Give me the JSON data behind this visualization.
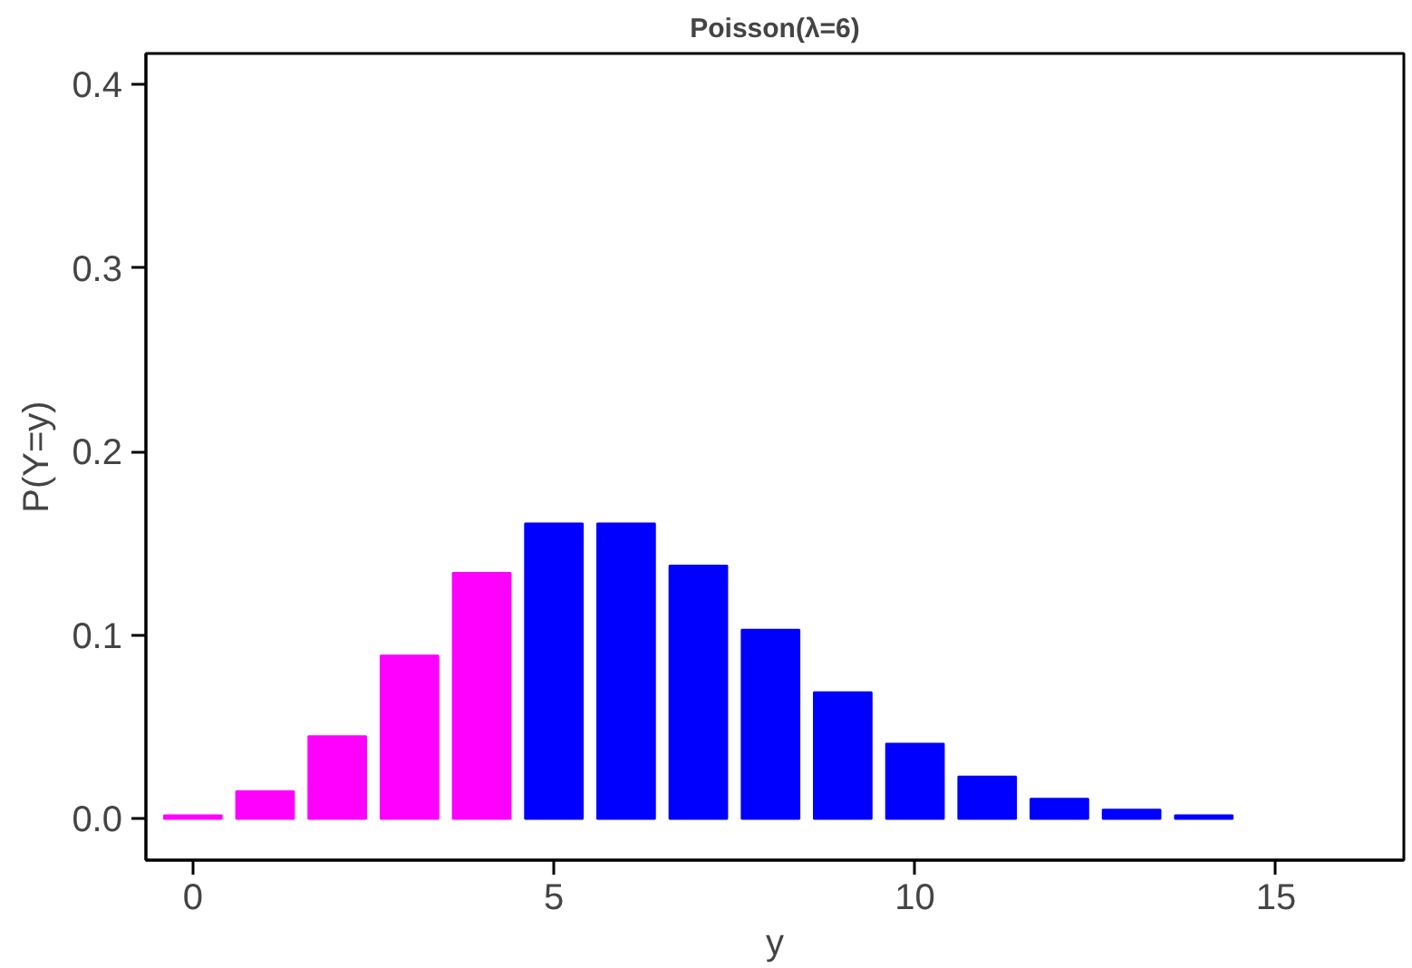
{
  "chart_data": {
    "type": "bar",
    "title": "Poisson(λ=6)",
    "xlabel": "y",
    "ylabel": "P(Y=y)",
    "x": [
      0,
      1,
      2,
      3,
      4,
      5,
      6,
      7,
      8,
      9,
      10,
      11,
      12,
      13,
      14
    ],
    "values": [
      0.002,
      0.015,
      0.045,
      0.089,
      0.134,
      0.161,
      0.161,
      0.138,
      0.103,
      0.069,
      0.041,
      0.023,
      0.011,
      0.005,
      0.002
    ],
    "colors": [
      "#ff00ff",
      "#ff00ff",
      "#ff00ff",
      "#ff00ff",
      "#ff00ff",
      "#0000ff",
      "#0000ff",
      "#0000ff",
      "#0000ff",
      "#0000ff",
      "#0000ff",
      "#0000ff",
      "#0000ff",
      "#0000ff",
      "#0000ff"
    ],
    "xlim": [
      -0.65,
      16.77
    ],
    "ylim": [
      -0.0225,
      0.417
    ],
    "xticks": [
      0,
      5,
      10,
      15
    ],
    "yticks": [
      {
        "value": 0,
        "label": "0.0"
      },
      {
        "value": 0.1,
        "label": "0.1"
      },
      {
        "value": 0.2,
        "label": "0.2"
      },
      {
        "value": 0.3,
        "label": "0.3"
      },
      {
        "value": 0.4,
        "label": "0.4"
      }
    ],
    "grid": false
  }
}
